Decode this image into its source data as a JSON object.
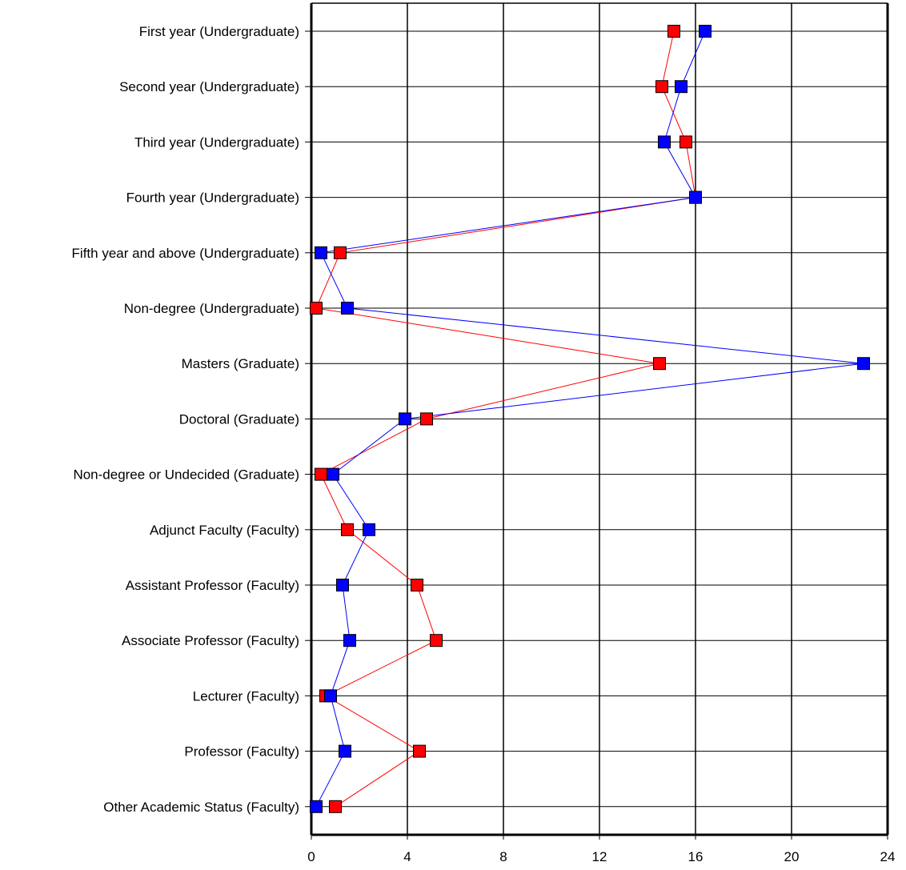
{
  "chart_data": {
    "type": "line",
    "orientation": "horizontal",
    "categories": [
      "First year (Undergraduate)",
      "Second year (Undergraduate)",
      "Third year (Undergraduate)",
      "Fourth year (Undergraduate)",
      "Fifth year and above (Undergraduate)",
      "Non-degree (Undergraduate)",
      "Masters (Graduate)",
      "Doctoral (Graduate)",
      "Non-degree or Undecided (Graduate)",
      "Adjunct Faculty (Faculty)",
      "Assistant Professor (Faculty)",
      "Associate Professor (Faculty)",
      "Lecturer (Faculty)",
      "Professor (Faculty)",
      "Other Academic Status (Faculty)"
    ],
    "series": [
      {
        "color": "#ff0000",
        "values": [
          15.1,
          14.6,
          15.6,
          16.0,
          1.2,
          0.2,
          14.5,
          4.8,
          0.4,
          1.5,
          4.4,
          5.2,
          0.6,
          4.5,
          1.0
        ]
      },
      {
        "color": "#0000ff",
        "values": [
          16.4,
          15.4,
          14.7,
          16.0,
          0.4,
          1.5,
          23.0,
          3.9,
          0.9,
          2.4,
          1.3,
          1.6,
          0.8,
          1.4,
          0.2
        ]
      }
    ],
    "xlim": [
      0,
      24
    ],
    "xticks": [
      "0",
      "4",
      "8",
      "12",
      "16",
      "20",
      "24"
    ],
    "grid": true,
    "legend": "none"
  }
}
